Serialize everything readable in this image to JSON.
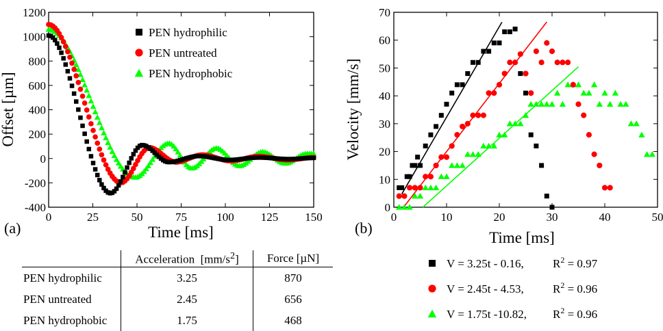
{
  "chart_data": [
    {
      "panel_label": "(a)",
      "type": "scatter",
      "xlabel": "Time [ms]",
      "ylabel": "Offset [µm]",
      "xlim": [
        0,
        150
      ],
      "ylim": [
        -400,
        1200
      ],
      "x_ticks": [
        0,
        25,
        50,
        75,
        100,
        125,
        150
      ],
      "y_ticks": [
        -400,
        -200,
        0,
        200,
        400,
        600,
        800,
        1000,
        1200
      ],
      "legend_position": "top-right",
      "series": [
        {
          "name": "PEN hydrophilic",
          "marker": "square",
          "color": "#000000",
          "model": {
            "start": 1010,
            "t_min": 35,
            "y_min": -285,
            "peaks": [
              [
                53,
                110
              ],
              [
                68,
                -30
              ],
              [
                85,
                20
              ],
              [
                102,
                -12
              ],
              [
                119,
                8
              ],
              [
                136,
                -5
              ],
              [
                150,
                5
              ]
            ]
          }
        },
        {
          "name": "PEN untreated",
          "marker": "circle",
          "color": "#ff0000",
          "model": {
            "start": 1100,
            "t_min": 41,
            "y_min": -200,
            "peaks": [
              [
                57,
                90
              ],
              [
                72,
                -30
              ],
              [
                87,
                30
              ],
              [
                103,
                -20
              ],
              [
                119,
                18
              ],
              [
                135,
                -12
              ],
              [
                150,
                8
              ]
            ]
          }
        },
        {
          "name": "PEN hydrophobic",
          "marker": "triangle",
          "color": "#00ff00",
          "model": {
            "start": 1060,
            "t_min": 49,
            "y_min": -155,
            "peaks": [
              [
                68,
                125
              ],
              [
                81,
                -80
              ],
              [
                95,
                85
              ],
              [
                108,
                -60
              ],
              [
                121,
                55
              ],
              [
                134,
                -40
              ],
              [
                146,
                40
              ]
            ]
          }
        }
      ]
    },
    {
      "panel_label": "(b)",
      "type": "scatter",
      "xlabel": "Time [ms]",
      "ylabel": "Velocity [mm/s]",
      "xlim": [
        0,
        50
      ],
      "ylim": [
        0,
        70
      ],
      "x_ticks": [
        0,
        10,
        20,
        30,
        40,
        50
      ],
      "y_ticks": [
        0,
        10,
        20,
        30,
        40,
        50,
        60,
        70
      ],
      "series": [
        {
          "name": "PEN hydrophilic",
          "marker": "square",
          "color": "#000000",
          "fit": {
            "slope": 3.25,
            "intercept": -0.16,
            "x_range": [
              1.5,
              20.5
            ]
          },
          "points": [
            [
              1,
              7
            ],
            [
              1.5,
              7
            ],
            [
              2.5,
              11
            ],
            [
              3,
              11
            ],
            [
              3.5,
              15
            ],
            [
              4,
              15
            ],
            [
              4.5,
              18
            ],
            [
              5,
              15
            ],
            [
              6,
              22
            ],
            [
              7,
              26
            ],
            [
              8,
              29
            ],
            [
              9,
              33
            ],
            [
              10,
              37
            ],
            [
              11,
              41
            ],
            [
              12,
              44
            ],
            [
              13,
              44
            ],
            [
              14,
              48
            ],
            [
              15,
              52
            ],
            [
              16,
              52
            ],
            [
              17,
              56
            ],
            [
              18,
              56
            ],
            [
              19,
              59
            ],
            [
              20,
              59
            ],
            [
              21,
              63
            ],
            [
              22,
              63
            ],
            [
              23,
              64
            ],
            [
              24,
              48
            ],
            [
              25,
              41
            ],
            [
              26,
              26
            ],
            [
              27,
              22
            ],
            [
              28,
              15
            ],
            [
              29,
              4
            ],
            [
              30,
              0
            ]
          ]
        },
        {
          "name": "PEN untreated",
          "marker": "circle",
          "color": "#ff0000",
          "fit": {
            "slope": 2.45,
            "intercept": -4.53,
            "x_range": [
              2,
              29
            ]
          },
          "points": [
            [
              1,
              4
            ],
            [
              2,
              4
            ],
            [
              3,
              7
            ],
            [
              4,
              7
            ],
            [
              5,
              7
            ],
            [
              6,
              11
            ],
            [
              7,
              11
            ],
            [
              8,
              15
            ],
            [
              9,
              18
            ],
            [
              10,
              18
            ],
            [
              11,
              22
            ],
            [
              12,
              26
            ],
            [
              13,
              29
            ],
            [
              14,
              30
            ],
            [
              15,
              33
            ],
            [
              16,
              33
            ],
            [
              17,
              33
            ],
            [
              18,
              41
            ],
            [
              19,
              41
            ],
            [
              20,
              44
            ],
            [
              21,
              48
            ],
            [
              22,
              52
            ],
            [
              23,
              52
            ],
            [
              24,
              55
            ],
            [
              25,
              48
            ],
            [
              26,
              41
            ],
            [
              27,
              56
            ],
            [
              28,
              52
            ],
            [
              29,
              59
            ],
            [
              30,
              56
            ],
            [
              31,
              52
            ],
            [
              32,
              52
            ],
            [
              33,
              52
            ],
            [
              34,
              44
            ],
            [
              35,
              37
            ],
            [
              36,
              33
            ],
            [
              37,
              26
            ],
            [
              38,
              19
            ],
            [
              39,
              15
            ],
            [
              40,
              7
            ],
            [
              41,
              7
            ]
          ]
        },
        {
          "name": "PEN hydrophobic",
          "marker": "triangle",
          "color": "#00ff00",
          "fit": {
            "slope": 1.75,
            "intercept": -10.82,
            "x_range": [
              5.5,
              35
            ]
          },
          "points": [
            [
              1,
              0
            ],
            [
              2,
              0
            ],
            [
              3,
              0
            ],
            [
              4,
              4
            ],
            [
              5,
              4
            ],
            [
              6,
              7
            ],
            [
              7,
              7
            ],
            [
              8,
              7
            ],
            [
              9,
              11
            ],
            [
              10,
              11
            ],
            [
              11,
              15
            ],
            [
              12,
              15
            ],
            [
              13,
              15
            ],
            [
              14,
              19
            ],
            [
              15,
              19
            ],
            [
              16,
              19
            ],
            [
              17,
              22
            ],
            [
              18,
              22
            ],
            [
              19,
              22
            ],
            [
              20,
              26
            ],
            [
              21,
              26
            ],
            [
              22,
              30
            ],
            [
              23,
              30
            ],
            [
              24,
              30
            ],
            [
              25,
              33
            ],
            [
              26,
              37
            ],
            [
              27,
              37
            ],
            [
              28,
              37
            ],
            [
              29,
              37
            ],
            [
              30,
              37
            ],
            [
              31,
              41
            ],
            [
              32,
              37
            ],
            [
              33,
              44
            ],
            [
              34,
              44
            ],
            [
              35,
              44
            ],
            [
              36,
              41
            ],
            [
              37,
              41
            ],
            [
              38,
              44
            ],
            [
              39,
              37
            ],
            [
              40,
              41
            ],
            [
              41,
              37
            ],
            [
              42,
              41
            ],
            [
              43,
              37
            ],
            [
              44,
              37
            ],
            [
              45,
              30
            ],
            [
              46,
              30
            ],
            [
              47,
              26
            ],
            [
              48,
              19
            ],
            [
              49,
              19
            ]
          ]
        }
      ]
    }
  ],
  "fit_legend": [
    {
      "series": "PEN hydrophilic",
      "marker": "square",
      "color": "#000000",
      "equation": "V = 3.25t - 0.16,",
      "r2_label": "R",
      "r2_sup": "2",
      "r2_value": "= 0.97"
    },
    {
      "series": "PEN untreated",
      "marker": "circle",
      "color": "#ff0000",
      "equation": "V = 2.45t - 4.53,",
      "r2_label": "R",
      "r2_sup": "2",
      "r2_value": "= 0.96"
    },
    {
      "series": "PEN hydrophobic",
      "marker": "triangle",
      "color": "#00ff00",
      "equation": "V = 1.75t -10.82,",
      "r2_label": "R",
      "r2_sup": "2",
      "r2_value": "= 0.96"
    }
  ],
  "table": {
    "headers": [
      "",
      "Acceleration  [mm/s²]",
      "Force  [µN]"
    ],
    "rows": [
      [
        "PEN hydrophilic",
        "3.25",
        "870"
      ],
      [
        "PEN untreated",
        "2.45",
        "656"
      ],
      [
        "PEN hydrophobic",
        "1.75",
        "468"
      ]
    ]
  }
}
